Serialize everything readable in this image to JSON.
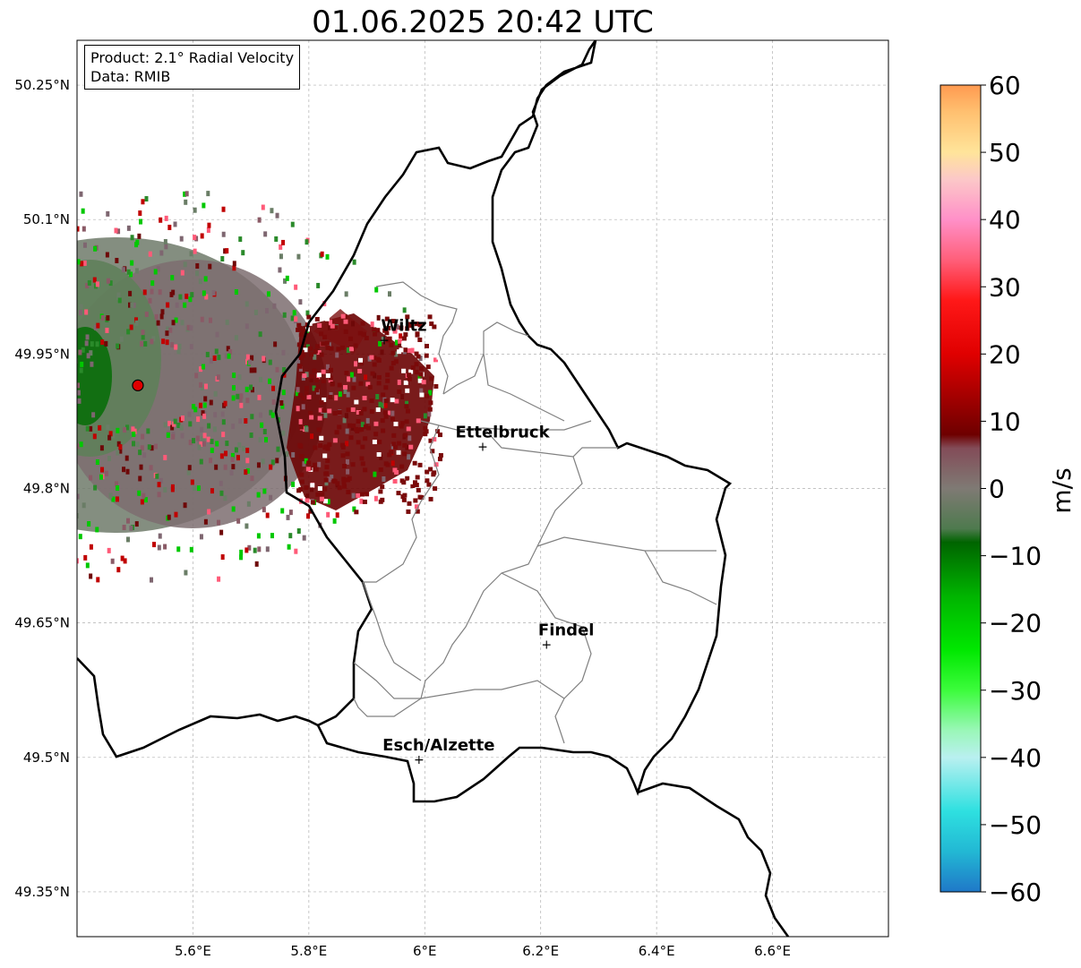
{
  "title": "01.06.2025 20:42 UTC",
  "info": {
    "product": "Product: 2.1° Radial Velocity",
    "data": "Data: RMIB"
  },
  "map": {
    "lon_range": [
      5.4,
      6.8
    ],
    "lat_range": [
      49.3,
      50.3
    ],
    "lon_ticks": [
      {
        "value": 5.6,
        "label": "5.6°E"
      },
      {
        "value": 5.8,
        "label": "5.8°E"
      },
      {
        "value": 6.0,
        "label": "6°E"
      },
      {
        "value": 6.2,
        "label": "6.2°E"
      },
      {
        "value": 6.4,
        "label": "6.4°E"
      },
      {
        "value": 6.6,
        "label": "6.6°E"
      }
    ],
    "lat_ticks": [
      {
        "value": 50.25,
        "label": "50.25°N"
      },
      {
        "value": 50.1,
        "label": "50.1°N"
      },
      {
        "value": 49.95,
        "label": "49.95°N"
      },
      {
        "value": 49.8,
        "label": "49.8°N"
      },
      {
        "value": 49.65,
        "label": "49.65°N"
      },
      {
        "value": 49.5,
        "label": "49.5°N"
      },
      {
        "value": 49.35,
        "label": "49.35°N"
      }
    ],
    "grid": true,
    "radar_site": {
      "lon": 5.505,
      "lat": 49.915
    },
    "cities": [
      {
        "name": "Wiltz",
        "lon": 5.93,
        "lat": 49.967
      },
      {
        "name": "Ettelbruck",
        "lon": 6.1,
        "lat": 49.848
      },
      {
        "name": "Findel",
        "lon": 6.21,
        "lat": 49.627
      },
      {
        "name": "Esch/Alzette",
        "lon": 5.99,
        "lat": 49.499
      }
    ]
  },
  "colorbar": {
    "min": -60,
    "max": 60,
    "label": "m/s",
    "ticks": [
      {
        "value": 60,
        "label": "60"
      },
      {
        "value": 50,
        "label": "50"
      },
      {
        "value": 40,
        "label": "40"
      },
      {
        "value": 30,
        "label": "30"
      },
      {
        "value": 20,
        "label": "20"
      },
      {
        "value": 10,
        "label": "10"
      },
      {
        "value": 0,
        "label": "0"
      },
      {
        "value": -10,
        "label": "−10"
      },
      {
        "value": -20,
        "label": "−20"
      },
      {
        "value": -30,
        "label": "−30"
      },
      {
        "value": -40,
        "label": "−40"
      },
      {
        "value": -50,
        "label": "−50"
      },
      {
        "value": -60,
        "label": "−60"
      }
    ],
    "stops": [
      {
        "value": -60,
        "color": "#1f78c8"
      },
      {
        "value": -54,
        "color": "#22b8d4"
      },
      {
        "value": -48,
        "color": "#2ee0e0"
      },
      {
        "value": -40,
        "color": "#b9f0f0"
      },
      {
        "value": -36,
        "color": "#9af7b8"
      },
      {
        "value": -30,
        "color": "#3cfc3c"
      },
      {
        "value": -24,
        "color": "#00e800"
      },
      {
        "value": -16,
        "color": "#00b400"
      },
      {
        "value": -8,
        "color": "#006400"
      },
      {
        "value": -6,
        "color": "#4e7a4e"
      },
      {
        "value": 0,
        "color": "#7f7a74"
      },
      {
        "value": 6,
        "color": "#834c58"
      },
      {
        "value": 8,
        "color": "#6e0000"
      },
      {
        "value": 20,
        "color": "#e00000"
      },
      {
        "value": 28,
        "color": "#ff1818"
      },
      {
        "value": 34,
        "color": "#ff5f7a"
      },
      {
        "value": 40,
        "color": "#ff90c8"
      },
      {
        "value": 46,
        "color": "#fcc8c8"
      },
      {
        "value": 50,
        "color": "#ffe49a"
      },
      {
        "value": 56,
        "color": "#ffc070"
      },
      {
        "value": 60,
        "color": "#ff9a50"
      }
    ]
  }
}
